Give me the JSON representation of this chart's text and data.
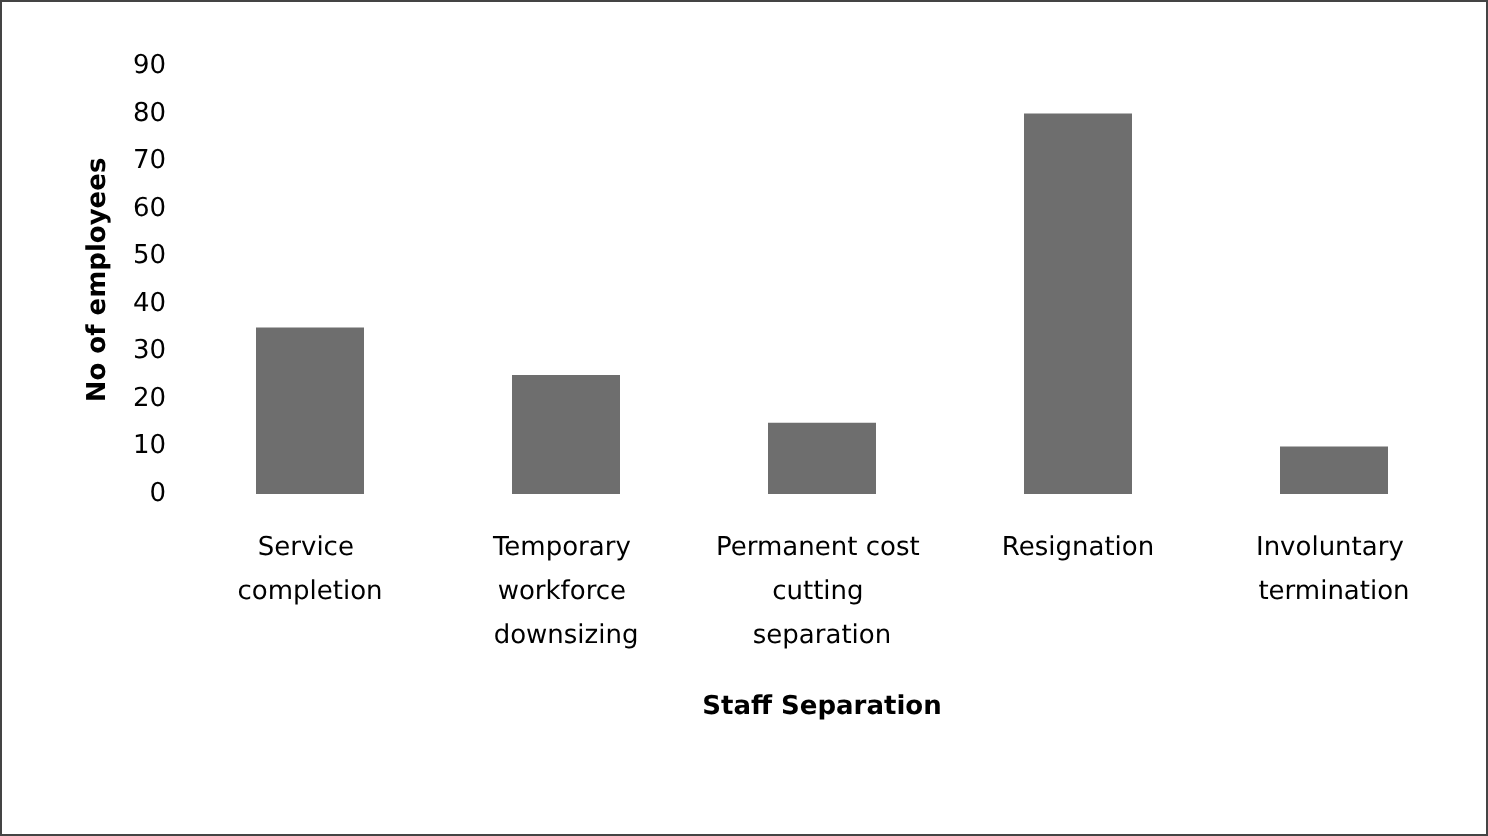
{
  "chart_data": {
    "type": "bar",
    "xlabel": "Staff Separation",
    "ylabel": "No of employees",
    "categories": [
      "Service completion",
      "Temporary workforce downsizing",
      "Permanent cost cutting separation",
      "Resignation",
      "Involuntary termination"
    ],
    "values": [
      35,
      25,
      15,
      80,
      10
    ],
    "color": "#6e6e6e",
    "ylim": [
      0,
      90
    ],
    "yticks": [
      0,
      10,
      20,
      30,
      40,
      50,
      60,
      70,
      80,
      90
    ],
    "grid": false
  }
}
